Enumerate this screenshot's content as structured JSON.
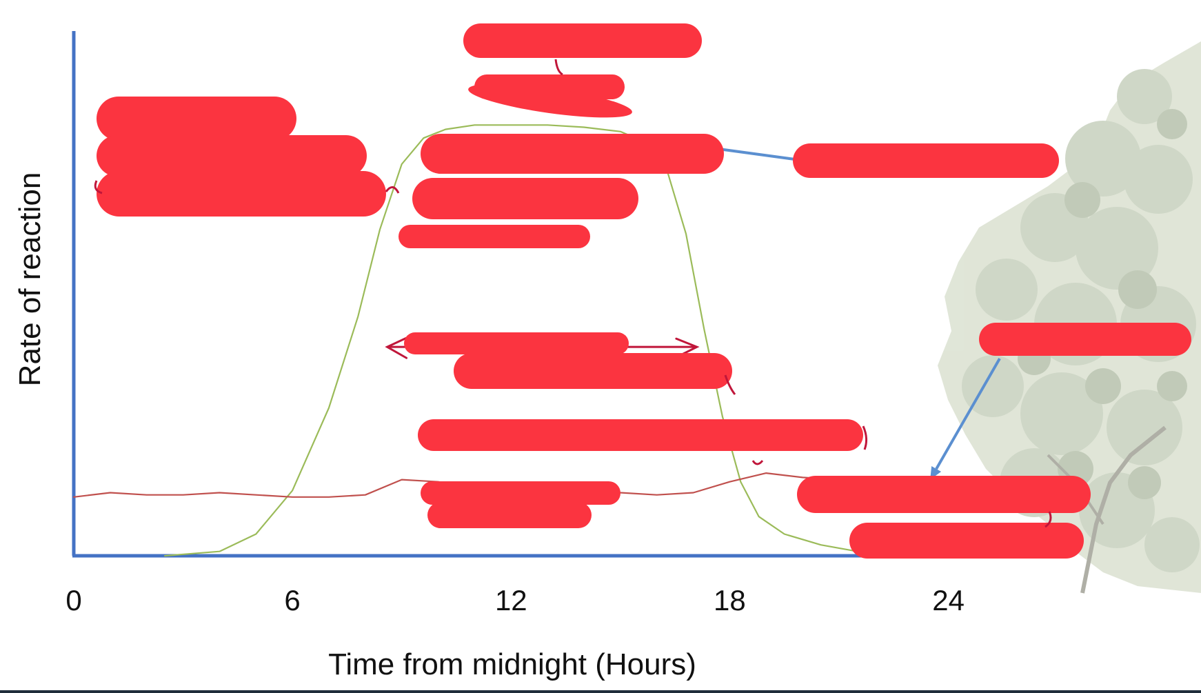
{
  "chart_data": {
    "type": "line",
    "xlabel": "Time from midnight (Hours)",
    "ylabel": "Rate of reaction",
    "xlim": [
      0,
      28
    ],
    "ylim": [
      0,
      1
    ],
    "x_ticks": [
      0,
      6,
      12,
      18,
      24
    ],
    "grid": false,
    "series": [
      {
        "color": "#9bbb59",
        "x": [
          2.5,
          4.0,
          5.0,
          6.0,
          7.0,
          7.8,
          8.4,
          9.0,
          9.6,
          10.2,
          11.0,
          12.0,
          13.0,
          14.0,
          15.0,
          15.7,
          16.3,
          16.8,
          17.3,
          17.8,
          18.3,
          18.8,
          19.5,
          20.5,
          21.5,
          22.5,
          23.5
        ],
        "y": [
          0.0,
          0.01,
          0.05,
          0.15,
          0.34,
          0.55,
          0.75,
          0.9,
          0.96,
          0.98,
          0.99,
          0.99,
          0.99,
          0.985,
          0.975,
          0.95,
          0.88,
          0.74,
          0.52,
          0.32,
          0.17,
          0.09,
          0.05,
          0.025,
          0.01,
          0.005,
          0.0
        ]
      },
      {
        "color": "#c0504d",
        "x": [
          0,
          1,
          2,
          3,
          4,
          5,
          6,
          7,
          8,
          9,
          10,
          11,
          12,
          13,
          14,
          15,
          16,
          17,
          18,
          19,
          20,
          21,
          22,
          23,
          24,
          25
        ],
        "y": [
          0.135,
          0.145,
          0.14,
          0.14,
          0.145,
          0.14,
          0.135,
          0.135,
          0.14,
          0.175,
          0.17,
          0.155,
          0.15,
          0.16,
          0.165,
          0.145,
          0.14,
          0.145,
          0.17,
          0.19,
          0.18,
          0.175,
          0.18,
          0.175,
          0.175,
          0.17
        ]
      }
    ],
    "annotations": {
      "arrow_color": "#5b8fd0",
      "span_arrow_color": "#c0163a",
      "span_start": 8.6,
      "span_end": 17.1,
      "span_level": 0.48,
      "pointer_green_target": {
        "x": 15.5,
        "y": 0.96
      },
      "pointer_red_target": {
        "x": 23.5,
        "y": 0.175
      }
    }
  },
  "redaction_color": "#fb3440",
  "image_semantics": [
    "tree-illustration"
  ]
}
